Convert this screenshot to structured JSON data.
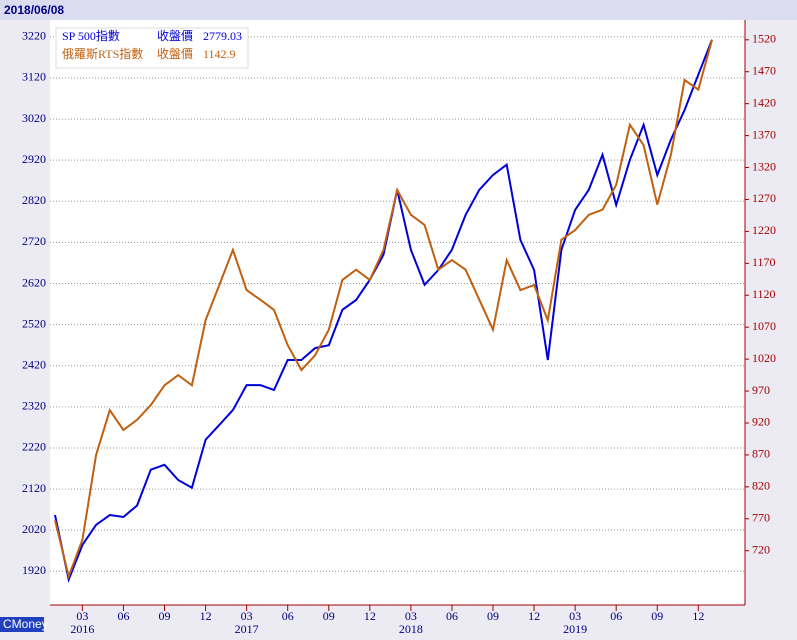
{
  "chart_data": {
    "type": "line",
    "date": "2018/06/08",
    "source": "CMoney",
    "categories": [
      null,
      null,
      "03",
      null,
      null,
      "06",
      null,
      null,
      "09",
      null,
      null,
      "12",
      null,
      null,
      "03",
      null,
      null,
      "06",
      null,
      null,
      "09",
      null,
      null,
      "12",
      null,
      null,
      "03",
      null,
      null,
      "06",
      null,
      null,
      "09",
      null,
      null,
      "12",
      null,
      null,
      "03",
      null,
      null,
      "06",
      null,
      null,
      "09",
      null,
      null,
      "12",
      null
    ],
    "year_labels": [
      "2016",
      "2017",
      "2018",
      "2019"
    ],
    "ylim": [
      1838,
      3261
    ],
    "yticks": [
      1920,
      2020,
      2120,
      2220,
      2320,
      2420,
      2520,
      2620,
      2720,
      2820,
      2920,
      3020,
      3120,
      3220
    ],
    "y2lim": [
      635,
      1551
    ],
    "y2ticks": [
      720,
      770,
      820,
      870,
      920,
      970,
      1020,
      1070,
      1120,
      1170,
      1220,
      1270,
      1320,
      1370,
      1420,
      1470,
      1520
    ],
    "grid": true,
    "series": [
      {
        "name": "SP 500指數",
        "close_label": "收盤價",
        "close": 2779.03,
        "color": "#0000dd",
        "axis": "y",
        "values": [
          2057,
          1900,
          1984,
          2033,
          2057,
          2052,
          2080,
          2167,
          2179,
          2142,
          2123,
          2240,
          2276,
          2312,
          2373,
          2373,
          2361,
          2434,
          2434,
          2463,
          2470,
          2556,
          2580,
          2629,
          2690,
          2848,
          2702,
          2617,
          2653,
          2702,
          2787,
          2848,
          2884,
          2909,
          2726,
          2653,
          2434,
          2702,
          2799,
          2848,
          2933,
          2811,
          2921,
          3006,
          2884,
          2970,
          3042,
          3128,
          3213
        ]
      },
      {
        "name": "俄羅斯RTS指數",
        "close_label": "收盤價",
        "close": 1142.9,
        "color": "#c06010",
        "axis": "y2",
        "values": [
          768,
          680,
          737,
          870,
          940,
          909,
          925,
          948,
          979,
          995,
          979,
          1081,
          1136,
          1191,
          1128,
          1113,
          1097,
          1042,
          1003,
          1026,
          1066,
          1144,
          1160,
          1144,
          1191,
          1285,
          1246,
          1230,
          1160,
          1175,
          1160,
          1113,
          1066,
          1175,
          1128,
          1136,
          1081,
          1207,
          1222,
          1246,
          1254,
          1293,
          1387,
          1355,
          1262,
          1340,
          1457,
          1442,
          1520
        ]
      }
    ]
  }
}
